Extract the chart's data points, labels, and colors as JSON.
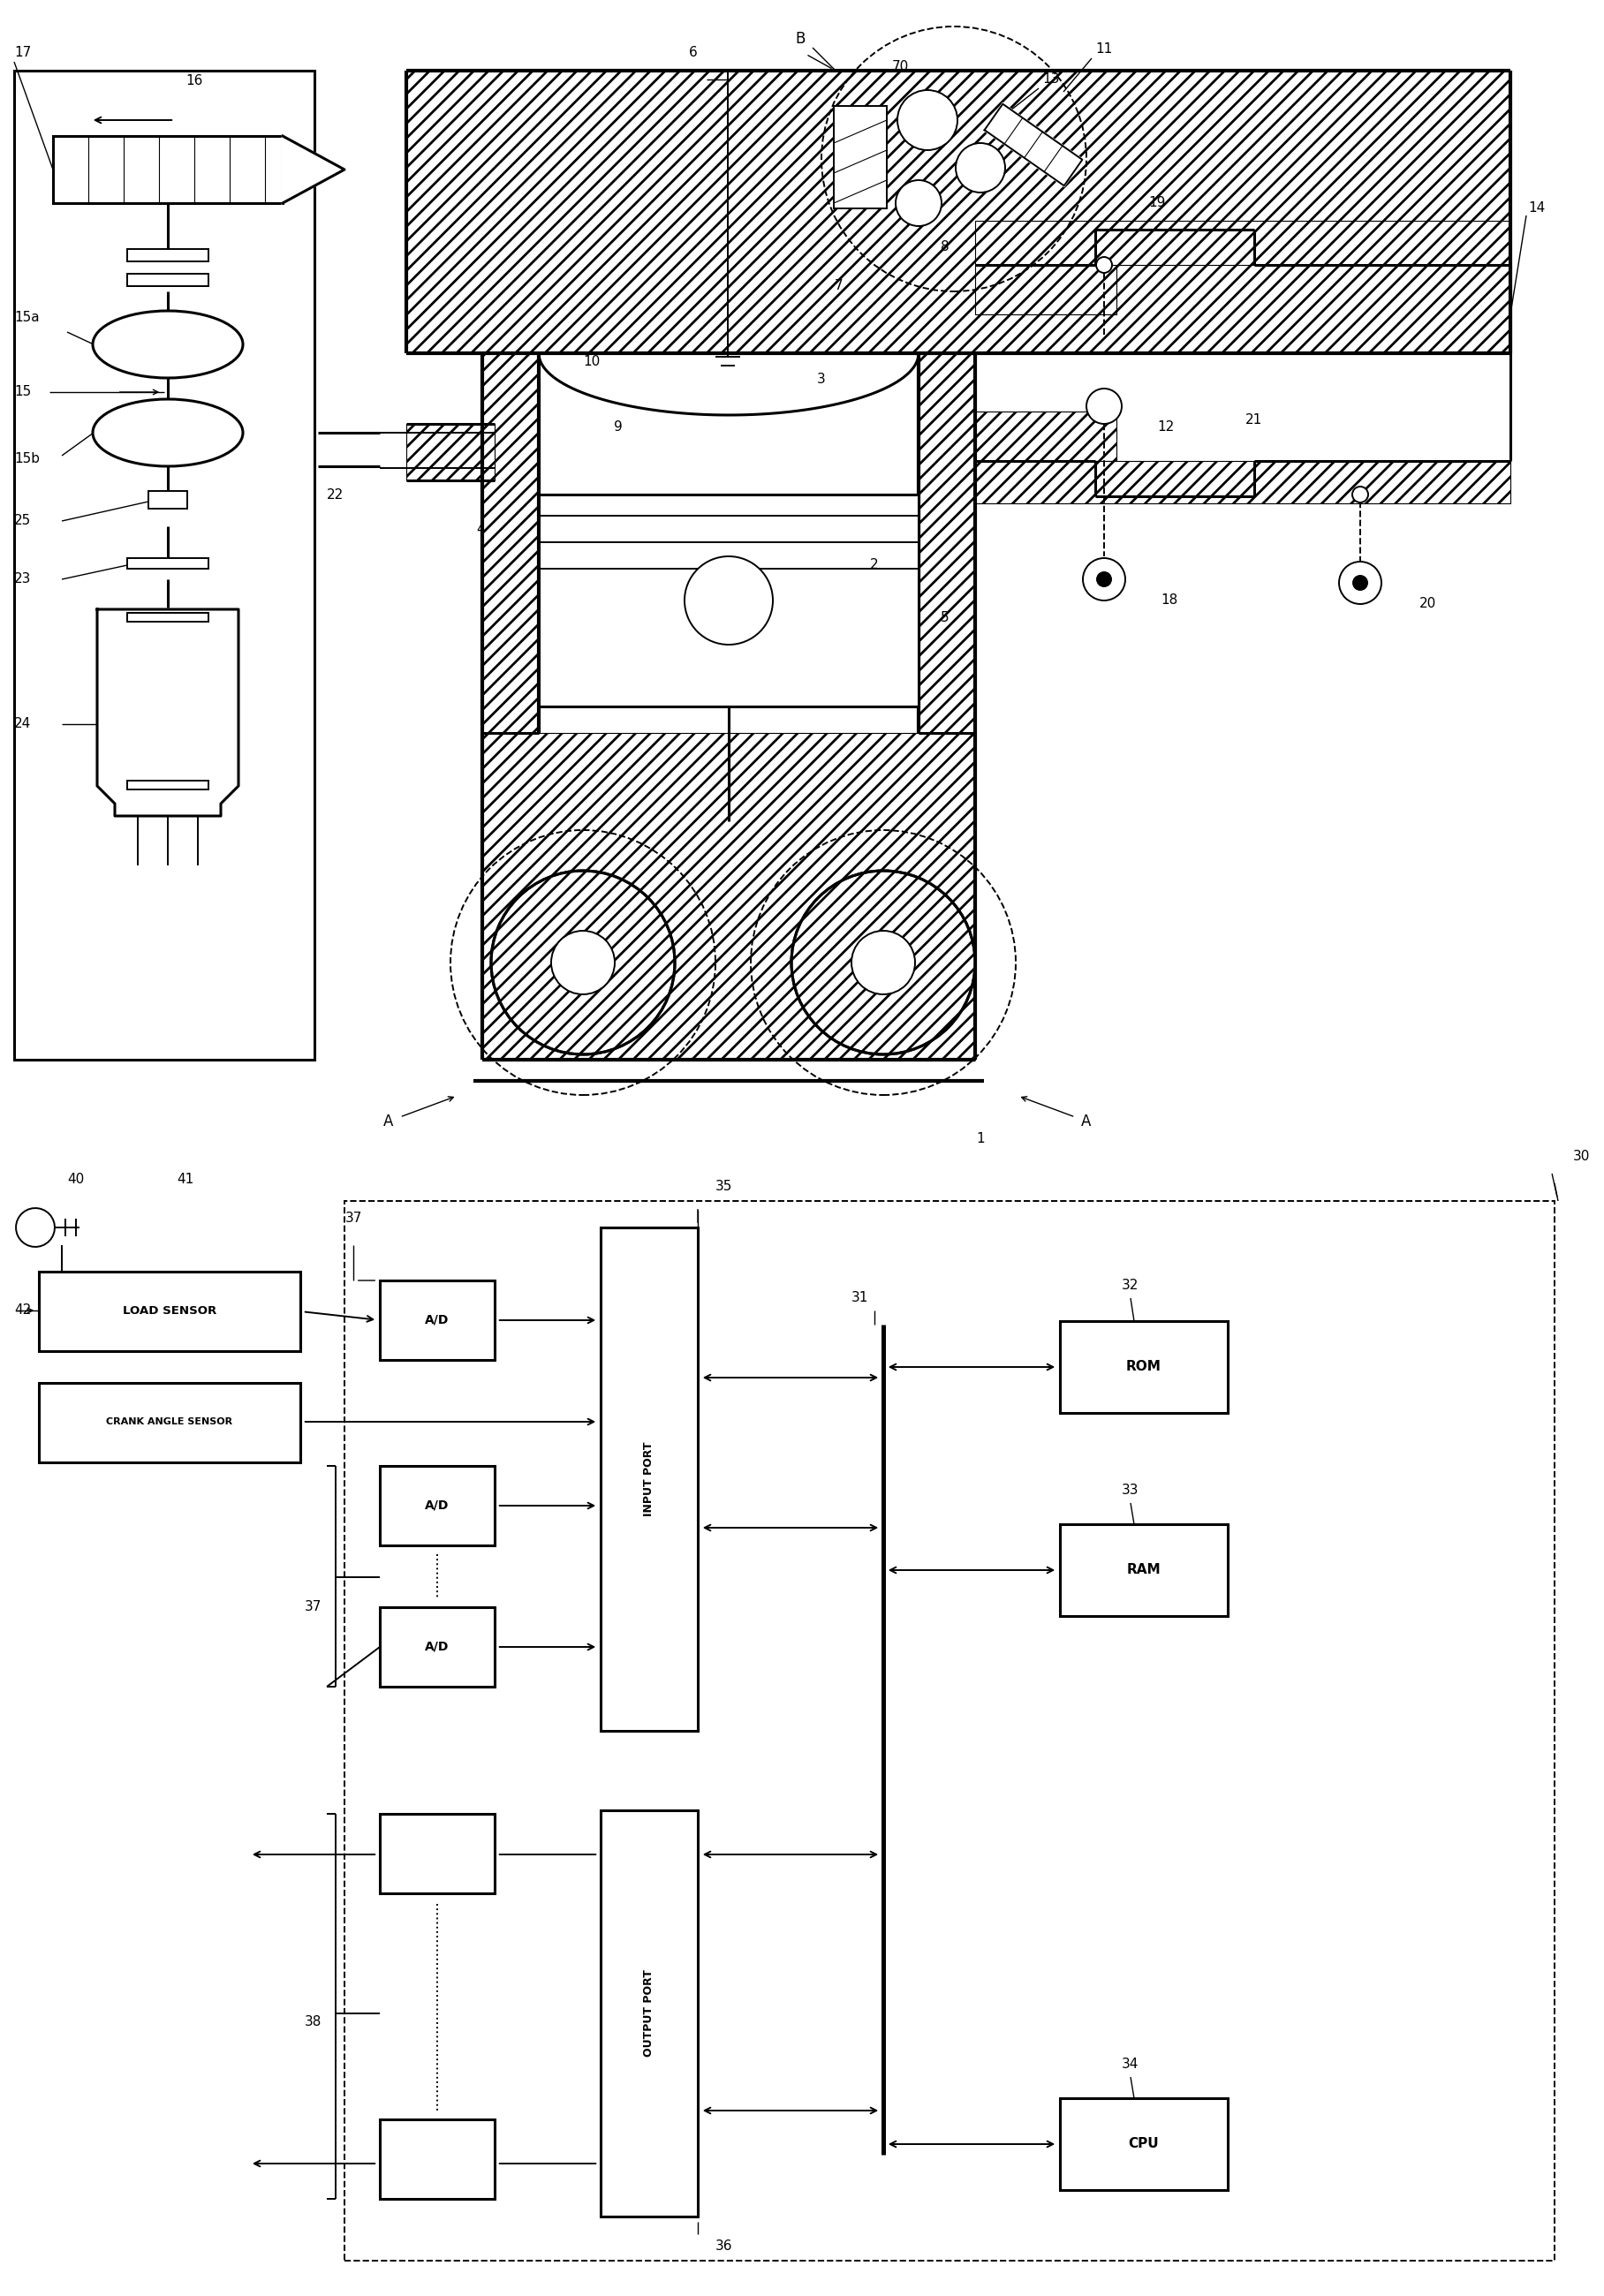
{
  "bg_color": "#ffffff",
  "line_color": "#000000",
  "fig_width": 9.08,
  "fig_height": 13.0,
  "labels": {
    "sensor1": "LOAD SENSOR",
    "sensor2": "CRANK ANGLE SENSOR",
    "ad": "A/D",
    "input_port": "INPUT PORT",
    "output_port": "OUTPUT PORT",
    "rom": "ROM",
    "ram": "RAM",
    "cpu": "CPU"
  }
}
